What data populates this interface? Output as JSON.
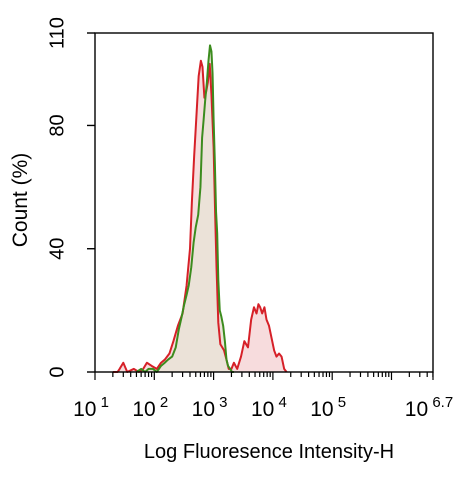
{
  "chart_data": {
    "type": "area",
    "xlabel": "Log Fluoresence Intensity-H",
    "ylabel": "Count  (%)",
    "xscale": "log",
    "xlim": [
      10,
      5011872
    ],
    "ylim": [
      0,
      110
    ],
    "x_ticks": [
      {
        "base": "10",
        "exp": "1",
        "value": 10
      },
      {
        "base": "10",
        "exp": "2",
        "value": 100
      },
      {
        "base": "10",
        "exp": "3",
        "value": 1000
      },
      {
        "base": "10",
        "exp": "4",
        "value": 10000
      },
      {
        "base": "10",
        "exp": "5",
        "value": 100000
      },
      {
        "base": "10",
        "exp": "6.7",
        "value": 5011872
      }
    ],
    "y_ticks": [
      {
        "label": "0",
        "value": 0
      },
      {
        "label": "40",
        "value": 40
      },
      {
        "label": "80",
        "value": 80
      },
      {
        "label": "110",
        "value": 110
      }
    ],
    "grid": false,
    "series": [
      {
        "style": "outline",
        "color": "#d62028",
        "fill": "#f7dcdd",
        "x": [
          20,
          24,
          26,
          30,
          35,
          45,
          55,
          65,
          75,
          90,
          110,
          130,
          150,
          180,
          210,
          250,
          300,
          350,
          400,
          430,
          470,
          520,
          560,
          610,
          650,
          700,
          750,
          800,
          860,
          920,
          1000,
          1060,
          1120,
          1200,
          1300,
          1400,
          1500,
          1650,
          1800,
          2000,
          2200,
          2500,
          2900,
          3300,
          3800,
          4300,
          4800,
          5300,
          5700,
          6100,
          6600,
          7200,
          7800,
          8600,
          9500,
          10500,
          11500,
          12700,
          14000,
          15500,
          17000
        ],
        "y": [
          0,
          0,
          1,
          3,
          0,
          1,
          0,
          1,
          3,
          2,
          1,
          3,
          4,
          6,
          10,
          15,
          19,
          28,
          40,
          55,
          70,
          85,
          96,
          101,
          99,
          89,
          91,
          94,
          100,
          90,
          73,
          52,
          34,
          16,
          9,
          8,
          7,
          4,
          1,
          1,
          3,
          1,
          5,
          10,
          8,
          17,
          21,
          19,
          22,
          21,
          19,
          21,
          17,
          15,
          11,
          7,
          5,
          6,
          5,
          1,
          0
        ]
      },
      {
        "style": "filled",
        "color": "#3c8c1e",
        "fill": "#ebe2d8",
        "x": [
          50,
          60,
          70,
          80,
          95,
          110,
          130,
          150,
          170,
          200,
          230,
          260,
          290,
          320,
          350,
          380,
          420,
          460,
          500,
          550,
          600,
          640,
          680,
          720,
          770,
          820,
          870,
          920,
          960,
          1000,
          1050,
          1100,
          1150,
          1200,
          1270,
          1350,
          1450,
          1550,
          1650,
          1750,
          1900,
          2050,
          2200
        ],
        "y": [
          0,
          1,
          0,
          1,
          1,
          0,
          2,
          3,
          4,
          5,
          8,
          14,
          18,
          22,
          25,
          28,
          34,
          42,
          47,
          51,
          60,
          76,
          82,
          88,
          94,
          101,
          106,
          104,
          97,
          82,
          68,
          52,
          45,
          30,
          20,
          18,
          15,
          10,
          4,
          2,
          1,
          0,
          0
        ]
      }
    ]
  }
}
